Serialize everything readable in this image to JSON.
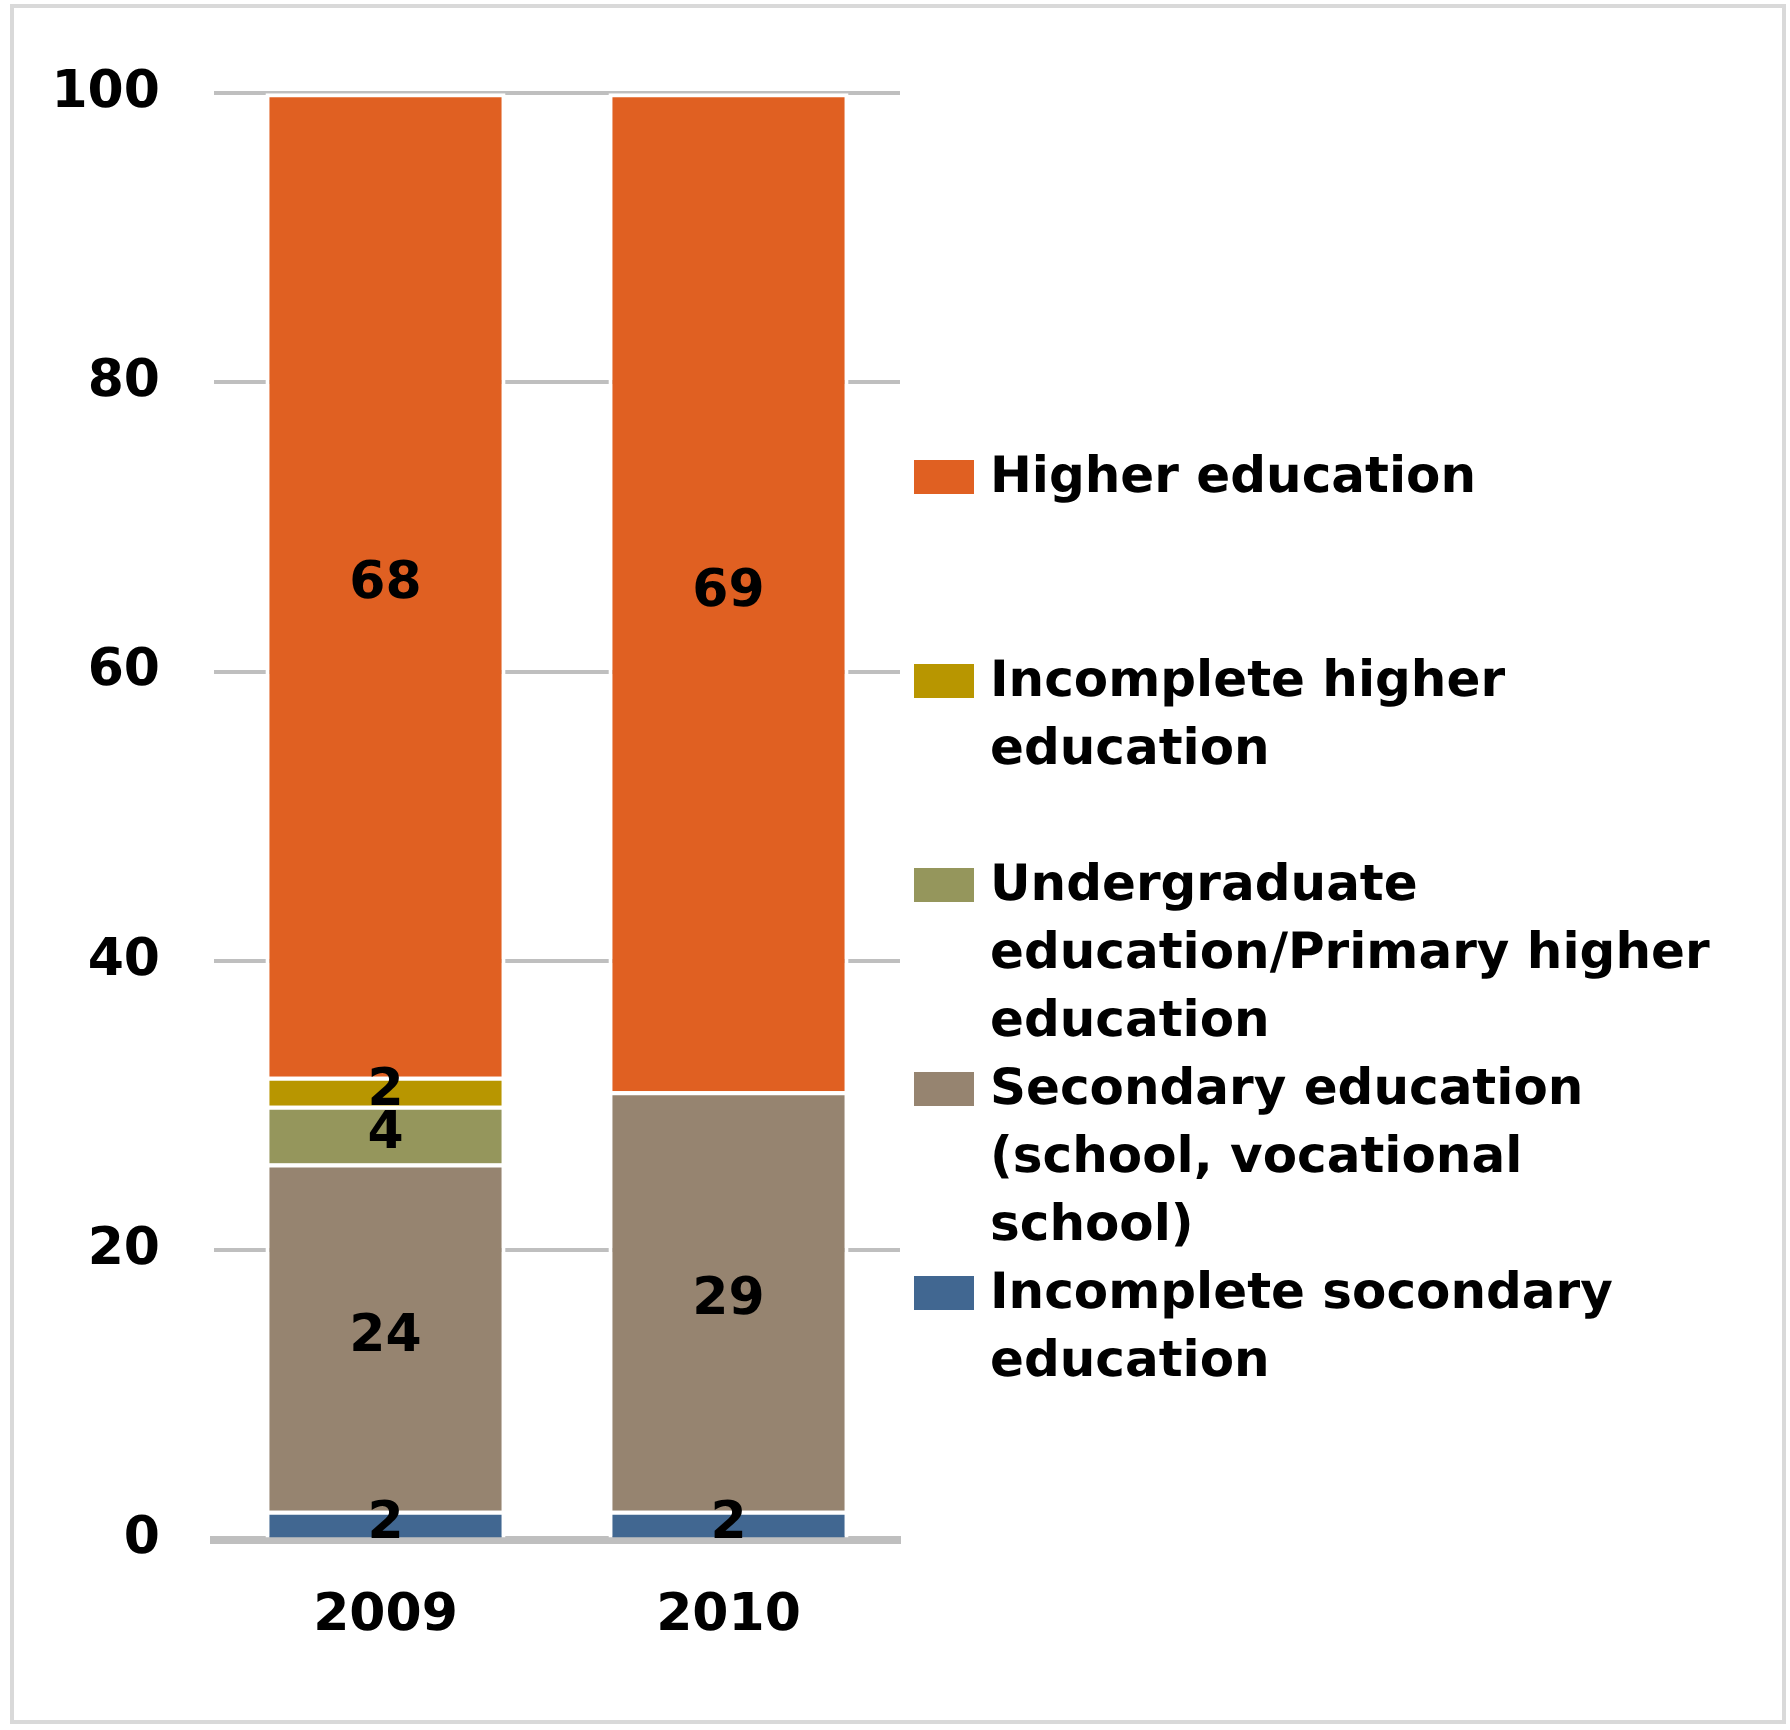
{
  "chart_data": {
    "type": "bar",
    "stacked": true,
    "categories": [
      "2009",
      "2010"
    ],
    "series": [
      {
        "name": "Incomplete socondary education",
        "color": "#416791",
        "values": [
          2,
          2
        ],
        "value_labels": [
          "2",
          "2"
        ]
      },
      {
        "name": "Secondary education (school, vocational school)",
        "color": "#968470",
        "values": [
          24,
          29
        ],
        "value_labels": [
          "24",
          "29"
        ]
      },
      {
        "name": "Undergraduate education/Primary higher education",
        "color": "#95965c",
        "values": [
          4,
          0
        ],
        "value_labels": [
          "4",
          null
        ]
      },
      {
        "name": "Incomplete higher education",
        "color": "#b89600",
        "values": [
          2,
          0
        ],
        "value_labels": [
          "2",
          null
        ]
      },
      {
        "name": "Higher education",
        "color": "#e06022",
        "values": [
          68,
          69
        ],
        "value_labels": [
          "68",
          "69"
        ]
      }
    ],
    "ylim": [
      0,
      100
    ],
    "yticks": [
      0,
      20,
      40,
      60,
      80,
      100
    ],
    "grid": "y",
    "legend": "right"
  }
}
